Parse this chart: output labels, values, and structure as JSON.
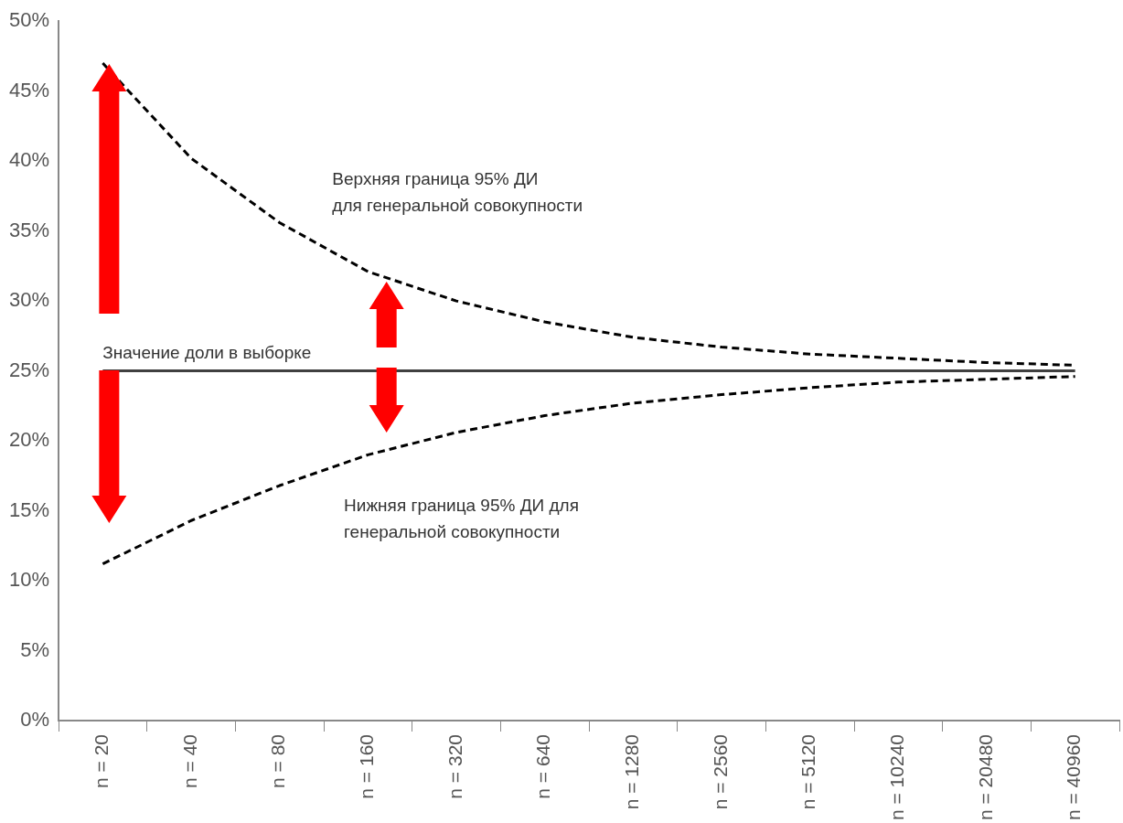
{
  "chart_data": {
    "type": "line",
    "categories": [
      "n = 20",
      "n = 40",
      "n = 80",
      "n = 160",
      "n = 320",
      "n = 640",
      "n = 1280",
      "n = 2560",
      "n = 5120",
      "n = 10240",
      "n = 20480",
      "n = 40960"
    ],
    "series": [
      {
        "color": "#000000",
        "line_style": "dashed",
        "values": [
          47,
          40.2,
          35.6,
          32.1,
          30,
          28.5,
          27.4,
          26.7,
          26.2,
          25.9,
          25.6,
          25.4
        ]
      },
      {
        "color": "#404040",
        "line_style": "solid",
        "values": [
          25,
          25,
          25,
          25,
          25,
          25,
          25,
          25,
          25,
          25,
          25,
          25
        ]
      },
      {
        "color": "#000000",
        "line_style": "dashed",
        "values": [
          11.2,
          14.3,
          16.8,
          19,
          20.6,
          21.8,
          22.7,
          23.3,
          23.8,
          24.2,
          24.4,
          24.6
        ]
      }
    ],
    "ylim": [
      0,
      50
    ],
    "yticks": [
      {
        "value": 0,
        "label": "0%"
      },
      {
        "value": 5,
        "label": "5%"
      },
      {
        "value": 10,
        "label": "10%"
      },
      {
        "value": 15,
        "label": "15%"
      },
      {
        "value": 20,
        "label": "20%"
      },
      {
        "value": 25,
        "label": "25%"
      },
      {
        "value": 30,
        "label": "30%"
      },
      {
        "value": 35,
        "label": "35%"
      },
      {
        "value": 40,
        "label": "40%"
      },
      {
        "value": 45,
        "label": "45%"
      },
      {
        "value": 50,
        "label": "50%"
      }
    ],
    "annotations": [
      "Верхняя граница 95% ДИ\nдля генеральной совокупности",
      {
        "text": "Значение доли в выборке",
        "x": "n = 20",
        "y": 25
      },
      "Нижняя граница 95% ДИ для\nгенеральной совокупности"
    ],
    "grid": false,
    "legend": false,
    "marker": "none"
  }
}
